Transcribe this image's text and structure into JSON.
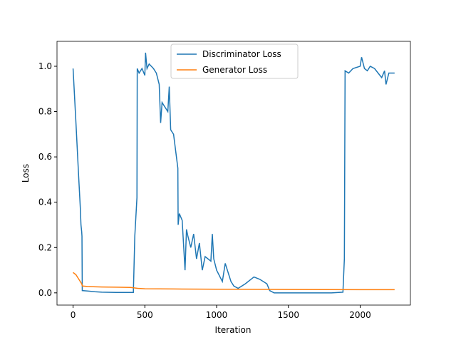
{
  "chart_data": {
    "type": "line",
    "x_label": "Iteration",
    "y_label": "Loss",
    "xlim": [
      -112,
      2350
    ],
    "ylim": [
      -0.054,
      1.11
    ],
    "xticks": [
      0,
      500,
      1000,
      1500,
      2000
    ],
    "yticks": [
      {
        "value": 0,
        "label": "0.0"
      },
      0.2,
      0.4,
      0.6,
      0.8,
      {
        "value": 1,
        "label": "1.0"
      }
    ],
    "legend": "upper center",
    "series": [
      {
        "name": "Discriminator Loss",
        "color": "#1f77b4",
        "x": [
          0,
          20,
          40,
          50,
          55,
          60,
          62,
          64,
          100,
          150,
          200,
          300,
          420,
          430,
          445,
          447,
          460,
          480,
          500,
          505,
          515,
          530,
          560,
          580,
          600,
          610,
          620,
          640,
          660,
          670,
          680,
          700,
          720,
          730,
          732,
          740,
          760,
          780,
          790,
          800,
          820,
          840,
          860,
          880,
          900,
          920,
          960,
          970,
          980,
          1000,
          1040,
          1060,
          1080,
          1100,
          1120,
          1150,
          1200,
          1260,
          1300,
          1350,
          1370,
          1400,
          1500,
          1800,
          1880,
          1890,
          1895,
          1920,
          1950,
          2000,
          2010,
          2030,
          2050,
          2070,
          2100,
          2150,
          2170,
          2180,
          2200,
          2240
        ],
        "values": [
          0.99,
          0.75,
          0.5,
          0.38,
          0.3,
          0.27,
          0.25,
          0.01,
          0.008,
          0.005,
          0.003,
          0.002,
          0.002,
          0.25,
          0.42,
          0.99,
          0.97,
          0.99,
          0.96,
          1.06,
          0.99,
          1.01,
          0.99,
          0.97,
          0.92,
          0.75,
          0.84,
          0.82,
          0.8,
          0.91,
          0.72,
          0.7,
          0.6,
          0.55,
          0.3,
          0.35,
          0.32,
          0.1,
          0.28,
          0.25,
          0.2,
          0.26,
          0.15,
          0.22,
          0.1,
          0.16,
          0.14,
          0.26,
          0.15,
          0.1,
          0.05,
          0.13,
          0.09,
          0.05,
          0.03,
          0.02,
          0.04,
          0.07,
          0.06,
          0.04,
          0.01,
          0.0,
          0.0,
          0.0,
          0.003,
          0.15,
          0.98,
          0.97,
          0.99,
          1.0,
          1.04,
          0.99,
          0.98,
          1.0,
          0.99,
          0.95,
          0.98,
          0.92,
          0.97,
          0.97
        ]
      },
      {
        "name": "Generator Loss",
        "color": "#ff7f0e",
        "x": [
          0,
          20,
          40,
          60,
          65,
          100,
          200,
          300,
          400,
          450,
          500,
          700,
          1000,
          1500,
          2000,
          2240
        ],
        "values": [
          0.09,
          0.08,
          0.06,
          0.04,
          0.03,
          0.028,
          0.026,
          0.025,
          0.024,
          0.02,
          0.018,
          0.017,
          0.016,
          0.015,
          0.014,
          0.014
        ]
      }
    ]
  }
}
